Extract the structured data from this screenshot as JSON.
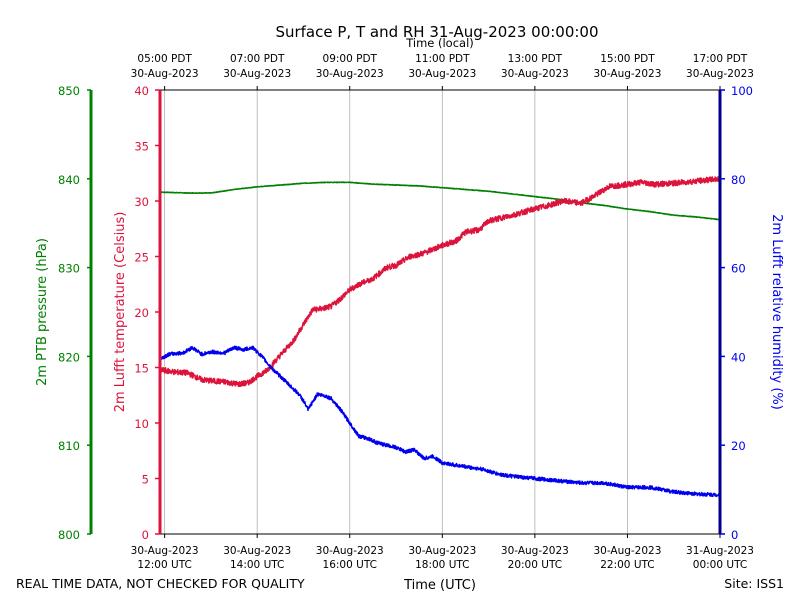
{
  "chart_data": {
    "type": "line",
    "title": "Surface P, T and RH 31-Aug-2023 00:00:00",
    "top_axis_label": "Time (local)",
    "bottom_axis_label": "Time (UTC)",
    "x_range_hours_utc": [
      11.9,
      24.0
    ],
    "bottom_ticks": [
      {
        "hour": 12,
        "line1": "30-Aug-2023",
        "line2": "12:00 UTC"
      },
      {
        "hour": 14,
        "line1": "30-Aug-2023",
        "line2": "14:00 UTC"
      },
      {
        "hour": 16,
        "line1": "30-Aug-2023",
        "line2": "16:00 UTC"
      },
      {
        "hour": 18,
        "line1": "30-Aug-2023",
        "line2": "18:00 UTC"
      },
      {
        "hour": 20,
        "line1": "30-Aug-2023",
        "line2": "20:00 UTC"
      },
      {
        "hour": 22,
        "line1": "30-Aug-2023",
        "line2": "22:00 UTC"
      },
      {
        "hour": 24,
        "line1": "31-Aug-2023",
        "line2": "00:00 UTC"
      }
    ],
    "top_ticks": [
      {
        "hour": 12,
        "line1": "05:00 PDT",
        "line2": "30-Aug-2023"
      },
      {
        "hour": 14,
        "line1": "07:00 PDT",
        "line2": "30-Aug-2023"
      },
      {
        "hour": 16,
        "line1": "09:00 PDT",
        "line2": "30-Aug-2023"
      },
      {
        "hour": 18,
        "line1": "11:00 PDT",
        "line2": "30-Aug-2023"
      },
      {
        "hour": 20,
        "line1": "13:00 PDT",
        "line2": "30-Aug-2023"
      },
      {
        "hour": 22,
        "line1": "15:00 PDT",
        "line2": "30-Aug-2023"
      },
      {
        "hour": 24,
        "line1": "17:00 PDT",
        "line2": "30-Aug-2023"
      }
    ],
    "axes": {
      "pressure": {
        "label": "2m PTB pressure (hPa)",
        "color": "#008000",
        "range": [
          800,
          850
        ],
        "ticks": [
          800,
          810,
          820,
          830,
          840,
          850
        ]
      },
      "temperature": {
        "label": "2m Lufft temperature (Celsius)",
        "color": "#dc143c",
        "range": [
          0,
          40
        ],
        "ticks": [
          0,
          5,
          10,
          15,
          20,
          25,
          30,
          35,
          40
        ]
      },
      "humidity": {
        "label": "2m Lufft relative humidity (%)",
        "color": "#0000ee",
        "range": [
          0,
          100
        ],
        "ticks": [
          0,
          20,
          40,
          60,
          80,
          100
        ]
      }
    },
    "series": [
      {
        "name": "2m PTB pressure (hPa)",
        "axis": "pressure",
        "color": "#008000",
        "noise": 0.03,
        "x": [
          11.9,
          12.5,
          13.0,
          13.5,
          14.0,
          14.5,
          15.0,
          15.5,
          16.0,
          16.5,
          17.0,
          17.5,
          18.0,
          18.5,
          19.0,
          19.5,
          20.0,
          20.5,
          21.0,
          21.5,
          22.0,
          22.5,
          23.0,
          23.5,
          24.0
        ],
        "values": [
          838.5,
          838.4,
          838.4,
          838.8,
          839.1,
          839.3,
          839.5,
          839.6,
          839.6,
          839.4,
          839.3,
          839.2,
          839.0,
          838.8,
          838.6,
          838.3,
          838.0,
          837.7,
          837.3,
          837.0,
          836.6,
          836.3,
          835.9,
          835.7,
          835.4
        ]
      },
      {
        "name": "2m Lufft temperature (Celsius)",
        "axis": "temperature",
        "color": "#dc143c",
        "noise": 0.25,
        "x": [
          11.9,
          12.2,
          12.5,
          12.8,
          13.0,
          13.3,
          13.6,
          13.8,
          14.0,
          14.2,
          14.5,
          14.8,
          15.0,
          15.2,
          15.4,
          15.6,
          15.8,
          16.0,
          16.2,
          16.5,
          16.8,
          17.0,
          17.3,
          17.6,
          18.0,
          18.3,
          18.5,
          18.8,
          19.0,
          19.5,
          20.0,
          20.3,
          20.6,
          21.0,
          21.3,
          21.6,
          22.0,
          22.3,
          22.6,
          23.0,
          23.5,
          24.0
        ],
        "values": [
          14.8,
          14.6,
          14.5,
          13.9,
          13.8,
          13.7,
          13.5,
          13.6,
          14.2,
          14.7,
          16.1,
          17.5,
          18.9,
          20.2,
          20.3,
          20.5,
          21.2,
          22.0,
          22.5,
          23.0,
          24.0,
          24.2,
          25.0,
          25.3,
          26.0,
          26.4,
          27.2,
          27.4,
          28.2,
          28.7,
          29.3,
          29.6,
          30.0,
          29.8,
          30.5,
          31.3,
          31.5,
          31.7,
          31.5,
          31.6,
          31.8,
          32.0
        ]
      },
      {
        "name": "2m Lufft relative humidity (%)",
        "axis": "humidity",
        "color": "#0000ee",
        "noise": 0.4,
        "x": [
          11.9,
          12.1,
          12.4,
          12.6,
          12.8,
          13.0,
          13.3,
          13.5,
          13.7,
          13.9,
          14.1,
          14.3,
          14.5,
          14.7,
          14.9,
          15.0,
          15.1,
          15.3,
          15.5,
          15.6,
          15.8,
          16.0,
          16.2,
          16.4,
          16.6,
          16.8,
          17.0,
          17.2,
          17.4,
          17.6,
          17.8,
          18.0,
          18.3,
          18.6,
          18.9,
          19.2,
          19.5,
          20.0,
          20.5,
          21.0,
          21.5,
          22.0,
          22.5,
          23.0,
          23.5,
          24.0
        ],
        "values": [
          39.5,
          40.5,
          40.8,
          42.0,
          40.5,
          41.0,
          40.8,
          42.0,
          41.5,
          42.0,
          40.0,
          37.5,
          35.5,
          33.5,
          31.5,
          30.0,
          28.0,
          31.5,
          31.0,
          30.5,
          28.0,
          25.0,
          22.0,
          21.5,
          20.5,
          20.0,
          19.5,
          18.5,
          19.0,
          17.0,
          17.5,
          16.0,
          15.5,
          15.0,
          14.5,
          13.5,
          13.0,
          12.5,
          12.0,
          11.5,
          11.5,
          10.5,
          10.5,
          9.5,
          9.0,
          8.8
        ]
      }
    ]
  },
  "footer": {
    "quality_note": "REAL TIME DATA, NOT CHECKED FOR QUALITY",
    "site": "Site: ISS1"
  }
}
